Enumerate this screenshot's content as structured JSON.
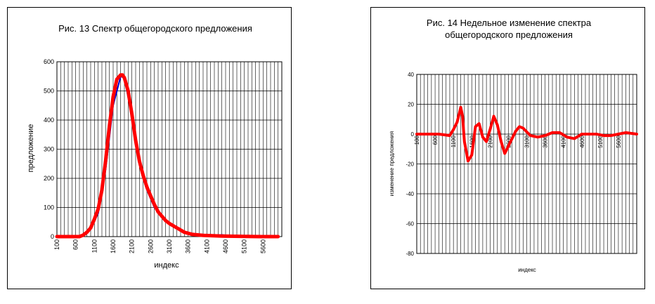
{
  "chart_data": [
    {
      "type": "line",
      "title": "Рис. 13 Спектр общегородского предложения",
      "xlabel": "индекс",
      "ylabel": "предложение",
      "ylim": [
        0,
        600
      ],
      "yticks": [
        "0",
        "100",
        "200",
        "300",
        "400",
        "500",
        "600"
      ],
      "xlim": [
        100,
        6100
      ],
      "xtick_labels": [
        "100",
        "600",
        "1100",
        "1600",
        "2100",
        "2600",
        "3100",
        "3600",
        "4100",
        "4600",
        "5100",
        "5600"
      ],
      "grid": true,
      "colors": {
        "primary": "#ff0000",
        "secondary": "#0000cc",
        "grid": "#000000"
      },
      "series": [
        {
          "values_x": [
            100,
            300,
            500,
            700,
            800,
            900,
            1000,
            1100,
            1200,
            1300,
            1400,
            1500,
            1600,
            1700,
            1800,
            1850,
            1900,
            2000,
            2100,
            2200,
            2300,
            2400,
            2500,
            2600,
            2700,
            2800,
            2900,
            3000,
            3100,
            3300,
            3500,
            3700,
            4000,
            4500,
            5000,
            5500,
            6000
          ],
          "values_y": [
            0,
            0,
            0,
            0,
            5,
            15,
            30,
            60,
            95,
            160,
            260,
            380,
            480,
            540,
            555,
            555,
            545,
            500,
            420,
            330,
            260,
            210,
            170,
            140,
            110,
            85,
            70,
            55,
            45,
            30,
            15,
            8,
            4,
            2,
            1,
            0,
            0
          ]
        },
        {
          "values_x": [
            100,
            500,
            800,
            1000,
            1200,
            1400,
            1600,
            1800,
            1900,
            2100,
            2300,
            2500,
            2700,
            2900,
            3100,
            3300,
            3500,
            3700,
            4000,
            4300,
            4500,
            4700,
            5000,
            6000
          ],
          "values_y": [
            0,
            0,
            3,
            25,
            80,
            230,
            450,
            550,
            545,
            410,
            250,
            160,
            100,
            65,
            45,
            28,
            15,
            8,
            5,
            5,
            6,
            3,
            0,
            0
          ]
        }
      ]
    },
    {
      "type": "line",
      "title": "Рис. 14 Недельное изменение спектра общегородского предложения",
      "title_lines": [
        "Рис. 14 Недельное изменение спектра",
        "общегородского предложения"
      ],
      "xlabel": "индекс",
      "ylabel": "изменение предложения",
      "ylim": [
        -80,
        40
      ],
      "yticks": [
        "40",
        "20",
        "0",
        "-20",
        "-40",
        "-60",
        "-80"
      ],
      "xlim": [
        100,
        6100
      ],
      "xtick_labels": [
        "100",
        "600",
        "1100",
        "1600",
        "2100",
        "2600",
        "3100",
        "3600",
        "4100",
        "4600",
        "5100",
        "5600"
      ],
      "grid": true,
      "colors": {
        "primary": "#ff0000",
        "grid": "#000000"
      },
      "series": [
        {
          "values_x": [
            100,
            400,
            700,
            1000,
            1100,
            1200,
            1300,
            1350,
            1400,
            1500,
            1600,
            1700,
            1800,
            1900,
            2000,
            2100,
            2200,
            2300,
            2400,
            2500,
            2600,
            2700,
            2800,
            2900,
            3000,
            3200,
            3400,
            3600,
            3800,
            4000,
            4200,
            4400,
            4600,
            4800,
            5000,
            5200,
            5400,
            5600,
            5800,
            6100
          ],
          "values_y": [
            0,
            0,
            0,
            -1,
            3,
            8,
            18,
            12,
            -5,
            -18,
            -14,
            5,
            7,
            -2,
            -5,
            3,
            12,
            6,
            -5,
            -13,
            -8,
            -3,
            2,
            5,
            4,
            -1,
            -2,
            -1,
            1,
            1,
            -2,
            -3,
            0,
            0,
            0,
            -1,
            -1,
            0,
            1,
            0
          ]
        }
      ]
    }
  ]
}
